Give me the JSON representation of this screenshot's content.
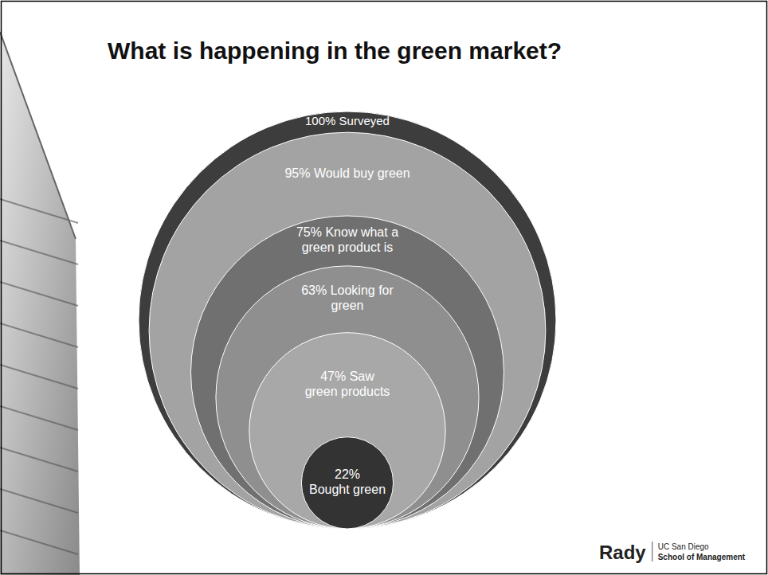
{
  "chart_data": {
    "type": "nested_circles",
    "title": "What is happening in the green market?",
    "categories": [
      "Surveyed",
      "Would buy green",
      "Know what a green product is",
      "Looking for green",
      "Saw green products",
      "Bought green"
    ],
    "values": [
      100,
      95,
      75,
      63,
      47,
      22
    ],
    "value_labels": [
      "100%",
      "95%",
      "75%",
      "63%",
      "47%",
      "22%"
    ],
    "colors": [
      "#3d3d3d",
      "#a3a3a3",
      "#707070",
      "#8f8f8f",
      "#a8a8a8",
      "#333333"
    ],
    "data_labels": true
  },
  "logo": {
    "brand": "Rady",
    "university": "UC San Diego",
    "school": "School of Management"
  }
}
